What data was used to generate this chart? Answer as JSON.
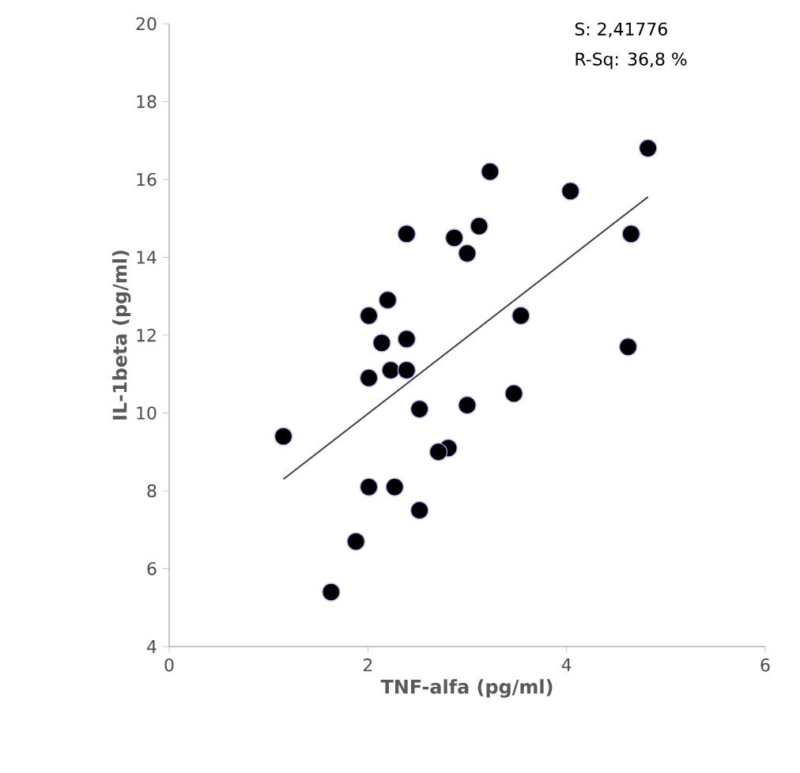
{
  "chart_data": {
    "type": "scatter",
    "xlabel": "TNF-alfa (pg/ml)",
    "ylabel": "IL-1beta (pg/ml)",
    "annotations": [
      "S: 2,41776",
      "R-Sq: 36,8 %"
    ],
    "xlim": [
      0,
      6
    ],
    "xticks": [
      0,
      2,
      4,
      6
    ],
    "ylim": [
      4,
      20
    ],
    "yticks": [
      4,
      6,
      8,
      10,
      12,
      14,
      16,
      18,
      20
    ],
    "grid": false,
    "series": [
      {
        "marker": "circle",
        "color": "#000000",
        "x": [
          4.82,
          3.23,
          4.04,
          2.39,
          2.87,
          3.12,
          3.0,
          4.65,
          2.2,
          2.01,
          3.54,
          2.14,
          2.39,
          4.62,
          2.23,
          2.39,
          2.01,
          3.47,
          2.52,
          3.0,
          1.15,
          2.81,
          2.71,
          2.01,
          2.27,
          2.52,
          1.88,
          1.63
        ],
        "values": [
          16.8,
          16.2,
          15.7,
          14.6,
          14.5,
          14.8,
          14.1,
          14.6,
          12.9,
          12.5,
          12.5,
          11.8,
          11.9,
          11.7,
          11.1,
          11.1,
          10.9,
          10.5,
          10.1,
          10.2,
          9.4,
          9.1,
          9.0,
          8.1,
          8.1,
          7.5,
          6.7,
          5.4
        ]
      },
      {
        "type": "line",
        "color": "#404040",
        "marker": "none",
        "line_style": "solid",
        "x": [
          1.15,
          4.82
        ],
        "values": [
          8.3,
          15.55
        ]
      }
    ]
  }
}
